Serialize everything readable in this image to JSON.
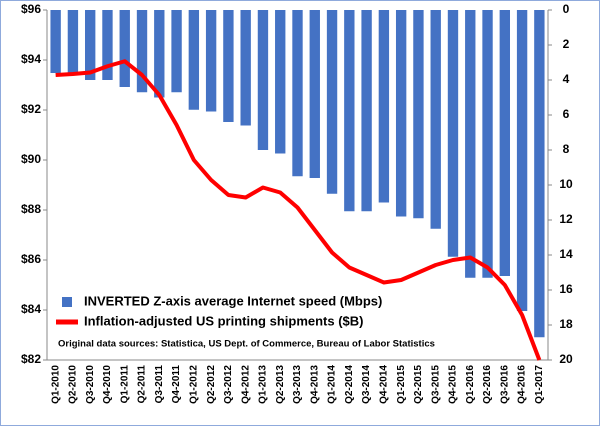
{
  "chart_data": {
    "type": "bar-line",
    "categories": [
      "Q1-2010",
      "Q2-2010",
      "Q3-2010",
      "Q4-2010",
      "Q1-2011",
      "Q2-2011",
      "Q3-2011",
      "Q4-2011",
      "Q1-2012",
      "Q2-2012",
      "Q3-2012",
      "Q4-2012",
      "Q1-2013",
      "Q2-2013",
      "Q3-2013",
      "Q4-2013",
      "Q1-2014",
      "Q2-2014",
      "Q3-2014",
      "Q4-2014",
      "Q1-2015",
      "Q2-2015",
      "Q3-2015",
      "Q4-2015",
      "Q1-2016",
      "Q2-2016",
      "Q3-2016",
      "Q4-2016",
      "Q1-2017"
    ],
    "series": [
      {
        "name": "INVERTED Z-axis average Internet speed (Mbps)",
        "color": "#4472c4",
        "axis": "y2",
        "kind": "bar",
        "values": [
          3.6,
          3.7,
          4.0,
          4.0,
          4.4,
          4.7,
          5.0,
          4.7,
          5.7,
          5.8,
          6.4,
          6.6,
          8.0,
          8.2,
          9.5,
          9.6,
          10.5,
          11.5,
          11.5,
          11.0,
          11.8,
          11.9,
          12.5,
          14.1,
          15.3,
          15.3,
          15.2,
          17.2,
          18.7
        ]
      },
      {
        "name": "Inflation-adjusted US printing shipments ($B)",
        "color": "#ff0000",
        "axis": "y",
        "kind": "line",
        "values": [
          93.4,
          93.44,
          93.5,
          93.75,
          93.95,
          93.4,
          92.6,
          91.4,
          90.0,
          89.2,
          88.6,
          88.5,
          88.9,
          88.7,
          88.1,
          87.2,
          86.3,
          85.7,
          85.4,
          85.1,
          85.2,
          85.5,
          85.8,
          86.0,
          86.1,
          85.7,
          85.0,
          83.8,
          82.0
        ]
      }
    ],
    "ylim": [
      82,
      96
    ],
    "yticks": [
      {
        "value": 82,
        "label": "$82"
      },
      {
        "value": 84,
        "label": "$84"
      },
      {
        "value": 86,
        "label": "$86"
      },
      {
        "value": 88,
        "label": "$88"
      },
      {
        "value": 90,
        "label": "$90"
      },
      {
        "value": 92,
        "label": "$92"
      },
      {
        "value": 94,
        "label": "$94"
      },
      {
        "value": 96,
        "label": "$96"
      }
    ],
    "y2lim": [
      0,
      20
    ],
    "y2_inverted": true,
    "y2ticks": [
      0,
      2,
      4,
      6,
      8,
      10,
      12,
      14,
      16,
      18,
      20
    ],
    "note": "Original data sources: Statistica, US Dept. of Commerce, Bureau of Labor Statistics",
    "legend": "bottom-left"
  }
}
